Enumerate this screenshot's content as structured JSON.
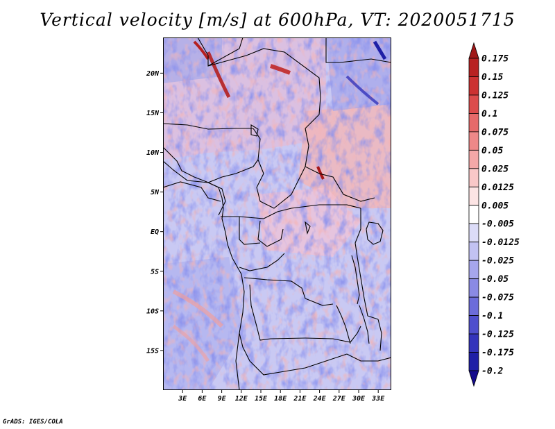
{
  "title": "Vertical velocity [m/s] at 600hPa, VT: 2020051715",
  "footer": "GrADS: IGES/COLA",
  "map": {
    "lat_labels": [
      "20N",
      "15N",
      "10N",
      "5N",
      "EQ",
      "5S",
      "10S",
      "15S"
    ],
    "lon_labels": [
      "3E",
      "6E",
      "9E",
      "12E",
      "15E",
      "18E",
      "21E",
      "24E",
      "27E",
      "30E",
      "33E"
    ],
    "extent": {
      "lon_min": 0,
      "lon_max": 35,
      "lat_min": -20,
      "lat_max": 24.5
    }
  },
  "colorbar": {
    "levels": [
      "0.175",
      "0.15",
      "0.125",
      "0.1",
      "0.075",
      "0.05",
      "0.025",
      "0.0125",
      "0.005",
      "-0.005",
      "-0.0125",
      "-0.025",
      "-0.05",
      "-0.075",
      "-0.1",
      "-0.125",
      "-0.175",
      "-0.2"
    ],
    "colors": [
      "#a01818",
      "#b82222",
      "#cc3232",
      "#dc4c4c",
      "#e66a6a",
      "#ee8888",
      "#f4a8a8",
      "#f9c8c8",
      "#fce4e4",
      "#ffffff",
      "#dcdcf8",
      "#c2c2f2",
      "#a6a6ec",
      "#8a8ae4",
      "#6c6cda",
      "#4f4fcd",
      "#3434bb",
      "#1f1fa6",
      "#140a8c"
    ]
  }
}
